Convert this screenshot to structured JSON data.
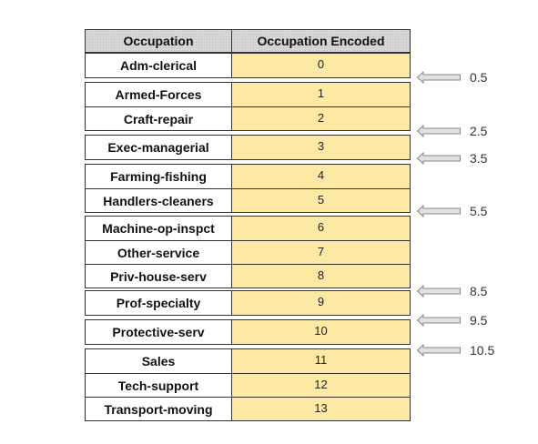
{
  "headers": {
    "occupation": "Occupation",
    "encoded": "Occupation Encoded"
  },
  "groups": [
    {
      "rows": [
        {
          "occupation": "Adm-clerical",
          "encoded": "0"
        }
      ]
    },
    {
      "rows": [
        {
          "occupation": "Armed-Forces",
          "encoded": "1"
        },
        {
          "occupation": "Craft-repair",
          "encoded": "2"
        }
      ]
    },
    {
      "rows": [
        {
          "occupation": "Exec-managerial",
          "encoded": "3"
        }
      ]
    },
    {
      "rows": [
        {
          "occupation": "Farming-fishing",
          "encoded": "4"
        },
        {
          "occupation": "Handlers-cleaners",
          "encoded": "5"
        }
      ]
    },
    {
      "rows": [
        {
          "occupation": "Machine-op-inspct",
          "encoded": "6"
        },
        {
          "occupation": "Other-service",
          "encoded": "7"
        },
        {
          "occupation": "Priv-house-serv",
          "encoded": "8"
        }
      ]
    },
    {
      "rows": [
        {
          "occupation": "Prof-specialty",
          "encoded": "9"
        }
      ]
    },
    {
      "rows": [
        {
          "occupation": "Protective-serv",
          "encoded": "10"
        }
      ]
    },
    {
      "rows": [
        {
          "occupation": "Sales",
          "encoded": "11"
        },
        {
          "occupation": "Tech-support",
          "encoded": "12"
        },
        {
          "occupation": "Transport-moving",
          "encoded": "13"
        }
      ]
    }
  ],
  "thresholds": [
    "0.5",
    "2.5",
    "3.5",
    "5.5",
    "8.5",
    "9.5",
    "10.5"
  ],
  "colors": {
    "encoded_fill": "#fde9a4",
    "header_fill": "#d6d6d6",
    "border": "#333333",
    "arrow_fill": "#e0e0e0",
    "arrow_stroke": "#888888"
  }
}
